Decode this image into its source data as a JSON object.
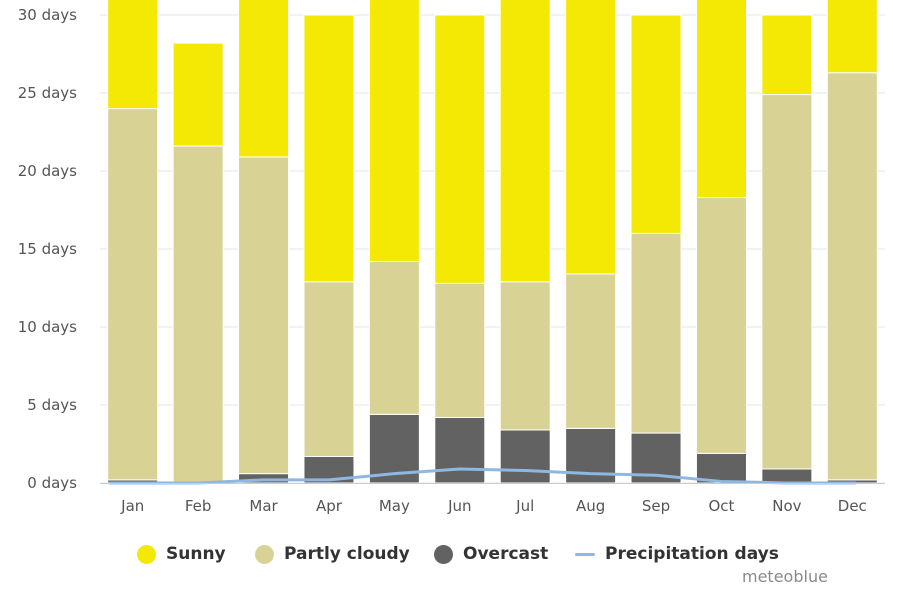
{
  "chart_data": {
    "type": "bar",
    "stacked": true,
    "categories": [
      "Jan",
      "Feb",
      "Mar",
      "Apr",
      "May",
      "Jun",
      "Jul",
      "Aug",
      "Sep",
      "Oct",
      "Nov",
      "Dec"
    ],
    "series": [
      {
        "name": "Overcast",
        "kind": "bar",
        "color": "#626262",
        "values": [
          0.2,
          0.0,
          0.6,
          1.7,
          4.4,
          4.2,
          3.4,
          3.5,
          3.2,
          1.9,
          0.9,
          0.2
        ]
      },
      {
        "name": "Partly cloudy",
        "kind": "bar",
        "color": "#d8d395",
        "values": [
          23.8,
          21.6,
          20.3,
          11.2,
          9.8,
          8.6,
          9.5,
          9.9,
          12.8,
          16.4,
          24.0,
          26.1
        ]
      },
      {
        "name": "Sunny",
        "kind": "bar",
        "color": "#f4e805",
        "values": [
          7.0,
          6.6,
          10.1,
          17.1,
          16.8,
          17.2,
          18.1,
          17.6,
          14.0,
          12.7,
          5.1,
          4.7
        ]
      },
      {
        "name": "Precipitation days",
        "kind": "line",
        "color": "#8fb8e0",
        "values": [
          0.0,
          0.0,
          0.2,
          0.2,
          0.6,
          0.9,
          0.8,
          0.6,
          0.5,
          0.1,
          0.0,
          0.0
        ]
      }
    ],
    "y_ticks": [
      "0 days",
      "5 days",
      "10 days",
      "15 days",
      "20 days",
      "25 days",
      "30 days"
    ],
    "ylim": [
      0,
      30
    ],
    "grid": true,
    "legend_position": "bottom",
    "title": "",
    "xlabel": "",
    "ylabel": ""
  },
  "legend": [
    {
      "label": "Sunny",
      "color": "#f4e805",
      "shape": "dot"
    },
    {
      "label": "Partly cloudy",
      "color": "#d8d395",
      "shape": "dot"
    },
    {
      "label": "Overcast",
      "color": "#626262",
      "shape": "dot"
    },
    {
      "label": "Precipitation days",
      "color": "#8fb8e0",
      "shape": "line"
    }
  ],
  "credit": "meteoblue"
}
